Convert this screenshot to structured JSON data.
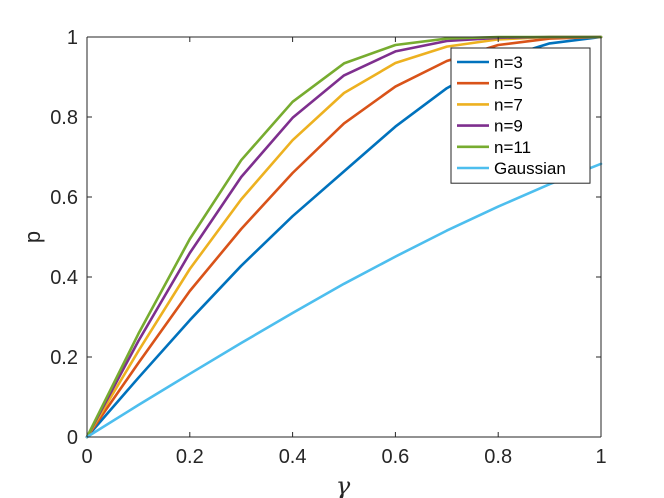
{
  "chart_data": {
    "type": "line",
    "xlabel": "γ",
    "ylabel": "p",
    "xlim": [
      0,
      1
    ],
    "ylim": [
      0,
      1
    ],
    "xticks": [
      "0",
      "0.2",
      "0.4",
      "0.6",
      "0.8",
      "1"
    ],
    "yticks": [
      "0",
      "0.2",
      "0.4",
      "0.6",
      "0.8",
      "1"
    ],
    "grid": false,
    "legend_position": "top-right",
    "x": [
      0,
      0.1,
      0.2,
      0.3,
      0.4,
      0.5,
      0.6,
      0.7,
      0.8,
      0.9,
      1.0
    ],
    "series": [
      {
        "name": "n=3",
        "color": "#0072bd",
        "values": [
          0,
          0.148,
          0.292,
          0.428,
          0.552,
          0.664,
          0.776,
          0.872,
          0.944,
          0.984,
          1.0
        ]
      },
      {
        "name": "n=5",
        "color": "#d95319",
        "values": [
          0,
          0.185,
          0.365,
          0.52,
          0.66,
          0.784,
          0.876,
          0.94,
          0.98,
          0.996,
          1.0
        ]
      },
      {
        "name": "n=7",
        "color": "#edb120",
        "values": [
          0,
          0.215,
          0.42,
          0.594,
          0.742,
          0.86,
          0.935,
          0.976,
          0.994,
          1.0,
          1.0
        ]
      },
      {
        "name": "n=9",
        "color": "#7e2f8e",
        "values": [
          0,
          0.24,
          0.46,
          0.65,
          0.798,
          0.904,
          0.964,
          0.99,
          0.998,
          1.0,
          1.0
        ]
      },
      {
        "name": "n=11",
        "color": "#77ac30",
        "values": [
          0,
          0.258,
          0.495,
          0.692,
          0.838,
          0.934,
          0.98,
          0.996,
          1.0,
          1.0,
          1.0
        ]
      },
      {
        "name": "Gaussian",
        "color": "#4dbeee",
        "values": [
          0,
          0.08,
          0.158,
          0.235,
          0.31,
          0.383,
          0.451,
          0.516,
          0.576,
          0.632,
          0.683
        ]
      }
    ]
  }
}
